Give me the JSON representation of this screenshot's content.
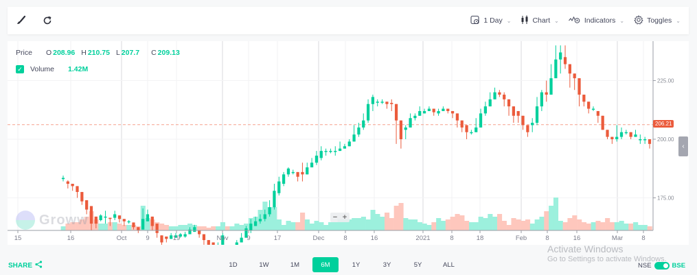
{
  "toolbar": {
    "left_icons": [
      "brush-icon",
      "refresh-icon"
    ],
    "interval_label": "1 Day",
    "chart_label": "Chart",
    "indicators_label": "Indicators",
    "toggles_label": "Toggles"
  },
  "legend": {
    "price_label": "Price",
    "open_key": "O",
    "open": "208.96",
    "high_key": "H",
    "high": "210.75",
    "low_key": "L",
    "low": "207.7",
    "close_key": "C",
    "close": "209.13",
    "volume_label": "Volume",
    "volume": "1.42M",
    "volume_checked": true
  },
  "price_tag": "206.21",
  "zoom_controls": {
    "minus": "−",
    "plus": "+"
  },
  "watermark": "Groww",
  "colors": {
    "up": "#00d09c",
    "down": "#eb5b3c",
    "up_vol": "#9cf0dd",
    "down_vol": "#fec7bd",
    "accent": "#00d09c"
  },
  "bottom": {
    "share_label": "SHARE",
    "ranges": [
      "1D",
      "1W",
      "1M",
      "6M",
      "1Y",
      "3Y",
      "5Y",
      "ALL"
    ],
    "active_range": "6M",
    "exchange_left": "NSE",
    "exchange_right": "BSE",
    "activate_title": "Activate Windows",
    "activate_sub": "Go to Settings to activate Windows."
  },
  "chart_data": {
    "type": "candlestick",
    "title": "",
    "y_ticks": [
      175.0,
      200.0,
      225.0
    ],
    "ylim": [
      167,
      242
    ],
    "current_price": 206.21,
    "x_ticks": [
      {
        "label": "15",
        "x": 15
      },
      {
        "label": "16",
        "x": 92
      },
      {
        "label": "Oct",
        "x": 166
      },
      {
        "label": "9",
        "x": 204
      },
      {
        "label": "19",
        "x": 246
      },
      {
        "label": "Nov",
        "x": 313
      },
      {
        "label": "9",
        "x": 351
      },
      {
        "label": "17",
        "x": 393
      },
      {
        "label": "Dec",
        "x": 453
      },
      {
        "label": "8",
        "x": 492
      },
      {
        "label": "16",
        "x": 534
      },
      {
        "label": "2021",
        "x": 605
      },
      {
        "label": "8",
        "x": 647
      },
      {
        "label": "18",
        "x": 688
      },
      {
        "label": "Feb",
        "x": 748
      },
      {
        "label": "8",
        "x": 786
      },
      {
        "label": "16",
        "x": 829
      },
      {
        "label": "Mar",
        "x": 888
      },
      {
        "label": "8",
        "x": 926
      }
    ],
    "candles": [
      [
        183,
        183.5,
        184.5,
        182
      ],
      [
        182,
        181,
        182.5,
        179
      ],
      [
        181,
        180,
        181,
        178
      ],
      [
        180,
        177.5,
        180,
        175
      ],
      [
        177.5,
        173.5,
        177.5,
        172
      ],
      [
        174,
        170,
        174,
        168
      ],
      [
        171.5,
        164,
        171.5,
        161
      ],
      [
        167,
        164,
        167,
        162
      ],
      [
        165.5,
        167.5,
        168,
        165
      ],
      [
        167,
        167,
        169.5,
        164
      ],
      [
        166.5,
        166,
        166.5,
        163
      ],
      [
        166.5,
        168,
        169.5,
        165.5
      ],
      [
        167.5,
        166,
        167.5,
        164.5
      ],
      [
        166,
        165,
        166,
        163
      ],
      [
        165,
        165,
        165.5,
        164
      ],
      [
        164.5,
        162.5,
        164.5,
        161.5
      ],
      [
        162.5,
        161,
        162.5,
        160
      ],
      [
        161.5,
        166,
        170.5,
        161.5
      ],
      [
        165,
        168,
        170,
        165
      ],
      [
        167,
        163,
        167,
        161
      ],
      [
        164,
        160,
        164,
        158
      ],
      [
        159,
        156,
        159,
        154
      ],
      [
        158.5,
        157.5,
        158.5,
        156
      ],
      [
        157.5,
        159,
        160,
        157.5
      ],
      [
        158,
        159,
        160,
        158
      ],
      [
        158.5,
        159.5,
        160,
        158
      ],
      [
        158.5,
        159.5,
        160.5,
        158
      ],
      [
        159.5,
        161.5,
        162.5,
        159.5
      ],
      [
        160.5,
        162.5,
        163.5,
        160.5
      ],
      [
        161,
        159.5,
        161,
        158
      ],
      [
        159.5,
        157,
        159.5,
        155
      ],
      [
        157,
        155,
        157,
        153
      ],
      [
        156,
        154.5,
        156,
        153
      ],
      [
        155,
        155,
        156,
        154
      ],
      [
        155,
        159,
        160,
        154.5
      ],
      [
        153,
        152,
        153,
        150
      ],
      [
        152,
        152,
        153,
        150
      ],
      [
        153,
        156,
        157,
        153
      ],
      [
        156,
        158,
        160,
        156
      ],
      [
        158,
        162,
        163,
        158
      ],
      [
        161,
        164,
        166,
        160
      ],
      [
        163,
        165,
        167,
        163
      ],
      [
        165,
        166,
        168,
        164
      ],
      [
        166,
        168,
        170,
        165
      ],
      [
        168,
        171,
        174,
        167
      ],
      [
        171,
        178,
        181,
        170
      ],
      [
        177,
        182,
        184,
        176
      ],
      [
        181,
        185,
        186,
        180
      ],
      [
        185,
        187.5,
        188,
        184
      ],
      [
        186,
        186,
        187,
        185
      ],
      [
        186,
        184,
        186,
        182
      ],
      [
        186,
        185,
        190,
        182
      ],
      [
        185,
        188,
        190,
        185
      ],
      [
        188,
        190,
        192,
        188
      ],
      [
        190,
        193,
        195,
        189
      ],
      [
        192,
        195,
        197,
        191
      ],
      [
        195,
        195,
        196,
        193
      ],
      [
        195,
        195,
        196,
        194
      ],
      [
        195,
        195,
        197,
        193
      ],
      [
        195,
        196,
        199,
        195
      ],
      [
        196,
        197,
        198,
        196
      ],
      [
        197,
        199,
        200,
        197
      ],
      [
        199,
        202,
        206,
        199
      ],
      [
        202,
        205,
        207,
        201
      ],
      [
        205,
        208,
        211,
        204
      ],
      [
        208,
        215,
        217,
        207
      ],
      [
        215,
        218,
        219,
        212
      ],
      [
        216,
        216,
        217,
        214
      ],
      [
        216,
        216,
        217,
        215
      ],
      [
        216,
        215,
        216,
        213
      ],
      [
        215.5,
        215,
        217,
        212
      ],
      [
        215,
        208,
        215,
        198
      ],
      [
        208,
        200,
        208,
        196
      ],
      [
        204,
        205,
        206,
        200
      ],
      [
        205,
        209,
        211,
        205
      ],
      [
        209,
        210,
        211,
        208
      ],
      [
        210,
        212,
        214,
        210
      ],
      [
        211,
        212,
        213,
        211
      ],
      [
        212,
        213,
        214,
        212
      ],
      [
        213,
        211.5,
        213,
        210
      ],
      [
        211,
        212,
        213,
        210
      ],
      [
        212,
        213,
        214,
        212
      ],
      [
        213,
        212,
        213,
        211
      ],
      [
        212,
        211,
        212,
        209
      ],
      [
        211,
        208,
        211,
        205
      ],
      [
        208,
        205,
        208,
        203
      ],
      [
        206,
        203,
        206,
        200
      ],
      [
        203,
        203,
        204,
        202
      ],
      [
        203,
        205,
        209,
        203
      ],
      [
        205,
        211,
        213,
        205
      ],
      [
        211,
        214,
        216,
        210
      ],
      [
        214,
        217,
        220,
        214
      ],
      [
        217,
        220,
        222,
        217
      ],
      [
        220,
        219,
        221,
        218
      ],
      [
        219,
        217,
        220,
        214
      ],
      [
        217,
        214,
        217,
        210
      ],
      [
        214,
        210,
        214,
        207
      ],
      [
        212,
        210,
        212,
        207
      ],
      [
        210,
        206,
        210,
        204
      ],
      [
        206,
        203,
        206,
        201
      ],
      [
        206,
        207,
        209,
        203
      ],
      [
        207,
        214,
        218,
        206
      ],
      [
        214,
        220,
        221,
        212
      ],
      [
        220,
        219,
        225,
        216
      ],
      [
        219,
        226,
        232,
        219
      ],
      [
        226,
        234,
        240,
        226
      ],
      [
        234,
        237,
        240,
        228
      ],
      [
        235,
        232,
        240,
        230
      ],
      [
        232,
        228,
        232,
        222
      ],
      [
        228,
        226,
        228,
        221
      ],
      [
        226,
        219,
        226,
        214
      ],
      [
        219,
        216,
        219,
        214
      ],
      [
        216,
        213,
        216,
        211
      ],
      [
        213,
        213,
        214,
        212
      ],
      [
        212,
        210,
        212,
        207
      ],
      [
        210,
        204,
        210,
        204
      ],
      [
        204,
        201,
        204,
        200
      ],
      [
        201,
        200,
        201,
        198
      ],
      [
        200,
        201,
        206,
        199
      ],
      [
        201,
        203,
        205,
        200
      ],
      [
        203,
        203,
        204,
        202
      ],
      [
        203,
        201,
        203,
        200
      ],
      [
        201,
        202,
        204,
        201
      ],
      [
        200,
        200,
        202,
        198
      ],
      [
        200,
        200,
        201,
        198
      ],
      [
        200,
        198,
        200,
        196
      ]
    ],
    "volumes": [
      0.3,
      0.5,
      0.6,
      0.6,
      0.8,
      1.0,
      1.4,
      0.8,
      0.5,
      0.5,
      0.6,
      0.6,
      0.5,
      0.4,
      0.4,
      0.4,
      0.3,
      1.8,
      0.9,
      0.8,
      0.6,
      0.5,
      0.4,
      0.3,
      0.3,
      0.4,
      0.4,
      0.5,
      0.4,
      0.3,
      0.3,
      0.2,
      0.3,
      0.3,
      0.6,
      0.3,
      0.3,
      0.5,
      0.4,
      0.5,
      0.9,
      1.0,
      1.5,
      2.1,
      1.7,
      1.7,
      0.8,
      0.4,
      0.7,
      0.6,
      0.6,
      1.3,
      0.8,
      0.5,
      0.7,
      0.6,
      0.4,
      0.6,
      0.6,
      0.8,
      0.8,
      0.8,
      0.9,
      0.9,
      1.0,
      0.8,
      1.5,
      1.2,
      1.0,
      1.3,
      0.9,
      1.8,
      2.0,
      0.9,
      0.8,
      0.8,
      0.6,
      0.5,
      0.4,
      0.6,
      0.9,
      0.7,
      0.8,
      1.0,
      1.2,
      1.1,
      0.7,
      0.6,
      0.6,
      1.0,
      0.9,
      1.2,
      1.0,
      1.2,
      0.7,
      0.4,
      0.9,
      0.8,
      0.7,
      0.8,
      0.5,
      0.8,
      1.0,
      1.4,
      1.8,
      2.4,
      0.7,
      0.6,
      0.9,
      1.1,
      0.8,
      0.6,
      0.5,
      0.6,
      0.7,
      0.6,
      0.9,
      0.6,
      0.6,
      0.7,
      0.5,
      0.5,
      0.6,
      0.4,
      0.4,
      0.3
    ]
  }
}
